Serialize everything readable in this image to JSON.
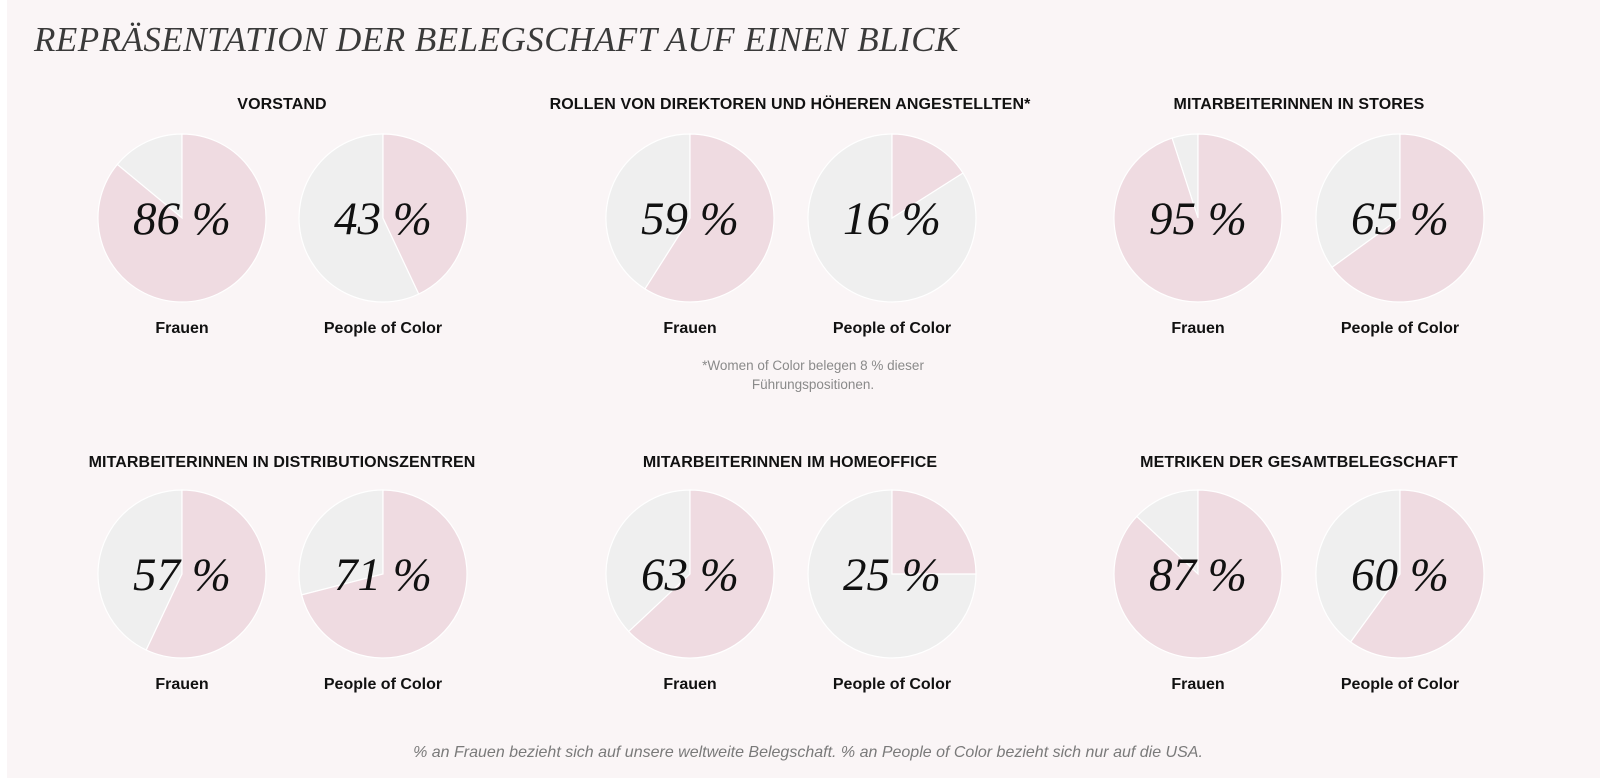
{
  "page": {
    "title": "REPRÄSENTATION DER BELEGSCHAFT AUF EINEN BLICK",
    "footnote": "*Women of Color belegen 8 % dieser Führungspositionen.",
    "bottom_note": "% an Frauen bezieht sich auf unsere weltweite Belegschaft. % an People of Color bezieht sich nur auf die USA."
  },
  "colors": {
    "highlight": "#efdbe1",
    "rest": "#efefef",
    "page_background": "#faf5f6"
  },
  "chart_data": [
    {
      "type": "pie",
      "title": "VORSTAND",
      "charts": [
        {
          "label": "Frauen",
          "value": 86,
          "display": "86 %"
        },
        {
          "label": "People of Color",
          "value": 43,
          "display": "43 %"
        }
      ]
    },
    {
      "type": "pie",
      "title": "ROLLEN VON DIREKTOREN UND HÖHEREN ANGESTELLTEN*",
      "charts": [
        {
          "label": "Frauen",
          "value": 59,
          "display": "59 %"
        },
        {
          "label": "People of Color",
          "value": 16,
          "display": "16 %"
        }
      ]
    },
    {
      "type": "pie",
      "title": "MITARBEITERINNEN IN STORES",
      "charts": [
        {
          "label": "Frauen",
          "value": 95,
          "display": "95 %"
        },
        {
          "label": "People of Color",
          "value": 65,
          "display": "65 %"
        }
      ]
    },
    {
      "type": "pie",
      "title": "MITARBEITERINNEN IN DISTRIBUTIONSZENTREN",
      "charts": [
        {
          "label": "Frauen",
          "value": 57,
          "display": "57 %"
        },
        {
          "label": "People of Color",
          "value": 71,
          "display": "71 %"
        }
      ]
    },
    {
      "type": "pie",
      "title": "MITARBEITERINNEN IM HOMEOFFICE",
      "charts": [
        {
          "label": "Frauen",
          "value": 63,
          "display": "63 %"
        },
        {
          "label": "People of Color",
          "value": 25,
          "display": "25 %"
        }
      ]
    },
    {
      "type": "pie",
      "title": "METRIKEN DER GESAMTBELEGSCHAFT",
      "charts": [
        {
          "label": "Frauen",
          "value": 87,
          "display": "87 %"
        },
        {
          "label": "People of Color",
          "value": 60,
          "display": "60 %"
        }
      ]
    }
  ]
}
